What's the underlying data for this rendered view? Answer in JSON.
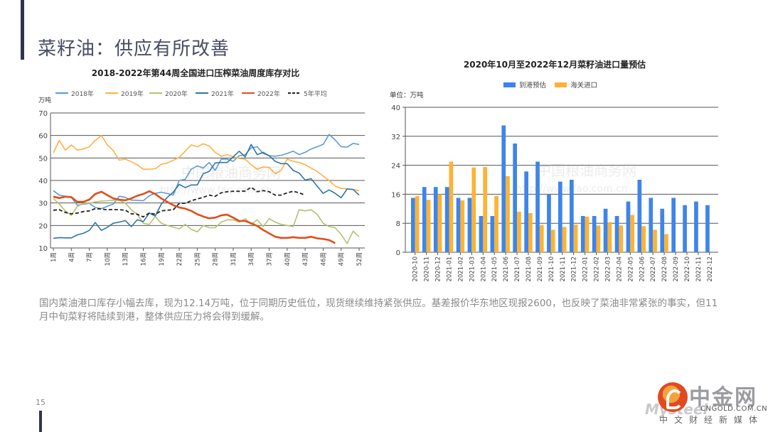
{
  "slide": {
    "title": "菜籽油：供应有所改善",
    "page_number": "15",
    "body_text": "国内菜油港口库存小幅去库，现为12.14万吨，位于同期历史低位，现货继续维持紧张供应。基差报价华东地区现报2600，也反映了菜油非常紧张的事实，但11月中旬菜籽将陆续到港，整体供应压力将会得到缓解。",
    "logo": {
      "name": "中金网",
      "domain": "CNGOLD.COM.CN",
      "slogan": "中文财经新媒体",
      "sub_mark": "Mysteel"
    },
    "watermark": {
      "name": "中国粮油商务网",
      "url": "http://www.fao.com.cn"
    }
  },
  "chart_data": [
    {
      "type": "line",
      "title": "2018-2022年第44周全国进口压榨菜油周度库存对比",
      "ylabel": "万吨",
      "xlabel": "",
      "ylim": [
        10,
        70
      ],
      "yticks": [
        10,
        20,
        30,
        40,
        50,
        60,
        70
      ],
      "grid": true,
      "legend": "top",
      "x": [
        1,
        2,
        3,
        4,
        5,
        6,
        7,
        8,
        9,
        10,
        11,
        12,
        13,
        14,
        15,
        16,
        17,
        18,
        19,
        20,
        21,
        22,
        23,
        24,
        25,
        26,
        27,
        28,
        29,
        30,
        31,
        32,
        33,
        34,
        35,
        36,
        37,
        38,
        39,
        40,
        41,
        42,
        43,
        44,
        45,
        46,
        47,
        48,
        49,
        50,
        51,
        52
      ],
      "xtick_labels": [
        "1周",
        "4周",
        "7周",
        "10周",
        "13周",
        "16周",
        "19周",
        "22周",
        "25周",
        "28周",
        "31周",
        "34周",
        "37周",
        "40周",
        "43周",
        "46周",
        "49周",
        "52周"
      ],
      "xtick_weeks": [
        1,
        4,
        7,
        10,
        13,
        16,
        19,
        22,
        25,
        28,
        31,
        34,
        37,
        40,
        43,
        46,
        49,
        52
      ],
      "series": [
        {
          "name": "2018年",
          "color": "#5b9bd5",
          "dash": false,
          "values": [
            35.5,
            33.5,
            33,
            32.5,
            29,
            29.5,
            29.8,
            28,
            27.5,
            28.5,
            29.5,
            33,
            32.5,
            31.3,
            31.2,
            31,
            33.2,
            34.3,
            34.8,
            34.2,
            33.5,
            40,
            40.5,
            45,
            46.5,
            45.5,
            48,
            44.5,
            49.5,
            49.5,
            48.5,
            51,
            51.5,
            54.5,
            55,
            52,
            51,
            50.8,
            51.2,
            52,
            53,
            51.5,
            52.5,
            54,
            55,
            56,
            60.5,
            58,
            55,
            54.8,
            56.5,
            56
          ]
        },
        {
          "name": "2019年",
          "color": "#ffb142",
          "dash": false,
          "values": [
            52.3,
            57.8,
            53.5,
            55.8,
            53.5,
            54,
            55,
            57.8,
            60,
            55.8,
            53.3,
            49,
            49.5,
            48.3,
            47,
            45,
            45,
            45.2,
            47.2,
            47.8,
            49,
            50.3,
            53,
            55.8,
            55,
            56.3,
            55.3,
            52.5,
            50.8,
            51.5,
            50.5,
            49.8,
            49.5,
            47,
            45,
            46,
            45.8,
            43,
            44.5,
            49.5,
            48.5,
            48,
            47,
            45.5,
            44,
            42,
            40,
            37.5,
            36.5,
            36.3,
            36,
            35.5
          ]
        },
        {
          "name": "2020年",
          "color": "#b4c26e",
          "dash": false,
          "values": [
            32,
            29.5,
            26.5,
            24.5,
            28.5,
            29.8,
            29.8,
            30.5,
            30.8,
            31,
            31.2,
            31.2,
            30,
            27,
            25,
            21,
            20.5,
            24,
            21,
            20,
            19.3,
            18.5,
            20.5,
            18.3,
            17.2,
            20,
            19,
            19,
            21.5,
            22.5,
            22.5,
            21.5,
            23,
            20.5,
            22.5,
            19.5,
            23,
            21.5,
            20.5,
            20,
            19.5,
            27,
            26.5,
            27,
            25,
            21,
            19.5,
            19,
            16,
            12,
            17.5,
            15
          ]
        },
        {
          "name": "2021年",
          "color": "#2e75a8",
          "dash": false,
          "values": [
            14.3,
            14.6,
            14.5,
            14.5,
            15.8,
            16.5,
            17.8,
            21.3,
            17.8,
            19.2,
            21,
            21.5,
            22.2,
            19.5,
            22.5,
            21.7,
            25.5,
            24.2,
            29.5,
            32.5,
            34.8,
            38.3,
            36.8,
            38,
            38,
            43,
            44,
            47.8,
            48,
            48,
            50.5,
            53,
            50.5,
            56,
            51.5,
            52.5,
            51,
            48.5,
            47.5,
            47.5,
            44.5,
            43.3,
            40.2,
            40.8,
            37.5,
            34.3,
            35.8,
            34.3,
            32.3,
            36.2,
            36,
            33.5
          ]
        },
        {
          "name": "2022年",
          "color": "#e04f1c",
          "dash": false,
          "values": [
            32.8,
            32.2,
            32.8,
            32.6,
            30.5,
            30.5,
            31.5,
            34,
            35,
            33.5,
            32,
            31.5,
            31.2,
            32,
            33.2,
            34,
            35.2,
            34,
            32,
            30.5,
            29,
            28,
            27.5,
            26.5,
            25,
            24,
            23.2,
            23.5,
            24.5,
            24.8,
            23.5,
            22,
            22,
            21,
            19.8,
            18,
            16.5,
            15,
            14.5,
            14.5,
            14.8,
            14.5,
            14.5,
            15,
            14.3,
            14,
            13.5,
            12.14
          ]
        },
        {
          "name": "5年平均",
          "color": "#222222",
          "dash": true,
          "values": [
            26.8,
            27,
            25.8,
            25.2,
            25.5,
            26.2,
            26.5,
            27.5,
            27.3,
            27,
            27.1,
            27,
            26.8,
            25.2,
            25,
            23.8,
            25.5,
            25,
            26.5,
            26.8,
            27,
            29.8,
            29.9,
            31,
            31.8,
            32.5,
            33.5,
            33,
            34.5,
            35,
            35.2,
            35.2,
            35.3,
            37,
            35,
            35.5,
            35,
            33.5,
            33.5,
            34.5,
            35.2,
            34.5,
            33.5
          ]
        }
      ]
    },
    {
      "type": "bar",
      "title": "2020年10月至2022年12月菜籽油进口量预估",
      "ylabel": "单位：万吨",
      "xlabel": "",
      "ylim": [
        0,
        40
      ],
      "yticks": [
        0,
        8,
        16,
        24,
        32,
        40
      ],
      "grid": true,
      "legend": "top",
      "categories": [
        "2020-10",
        "2020-11",
        "2020-12",
        "2021-01",
        "2021-02",
        "2021-03",
        "2021-04",
        "2021-05",
        "2021-06",
        "2021-07",
        "2021-08",
        "2021-09",
        "2021-10",
        "2021-11",
        "2021-12",
        "2022-01",
        "2022-02",
        "2022-03",
        "2022-04",
        "2022-05",
        "2022-06",
        "2022-07",
        "2022-08",
        "2022-09",
        "2022-10",
        "2022-11",
        "2022-12"
      ],
      "series": [
        {
          "name": "到港预估",
          "color": "#3d85ea",
          "values": [
            15,
            18,
            18,
            18,
            15,
            15,
            10,
            10,
            35,
            30,
            22.3,
            25,
            16,
            19.5,
            20,
            10,
            10,
            12,
            10,
            14,
            20,
            15,
            12,
            15,
            13,
            14,
            13
          ]
        },
        {
          "name": "海关进口",
          "color": "#ffb233",
          "values": [
            15.5,
            14.5,
            16,
            25,
            14.3,
            23.4,
            23.5,
            15.5,
            21,
            11.2,
            10.8,
            7.5,
            6.2,
            7,
            7.6,
            9.8,
            7.4,
            8.3,
            7.4,
            10.3,
            7.2,
            6.2,
            5,
            null,
            null,
            null,
            null
          ]
        }
      ]
    }
  ]
}
